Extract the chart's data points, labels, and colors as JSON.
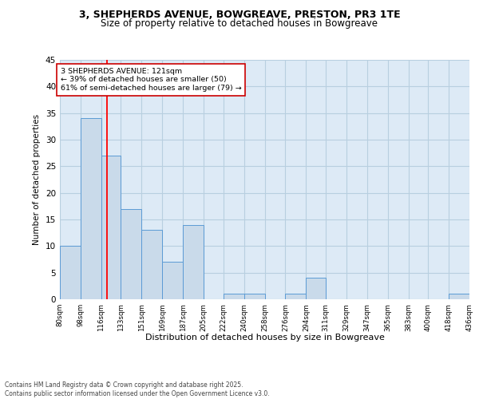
{
  "title1": "3, SHEPHERDS AVENUE, BOWGREAVE, PRESTON, PR3 1TE",
  "title2": "Size of property relative to detached houses in Bowgreave",
  "xlabel": "Distribution of detached houses by size in Bowgreave",
  "ylabel": "Number of detached properties",
  "bar_edges": [
    80,
    98,
    116,
    133,
    151,
    169,
    187,
    205,
    222,
    240,
    258,
    276,
    294,
    311,
    329,
    347,
    365,
    383,
    400,
    418,
    436
  ],
  "bar_heights": [
    10,
    34,
    27,
    17,
    13,
    7,
    14,
    0,
    1,
    1,
    0,
    1,
    4,
    0,
    0,
    0,
    0,
    0,
    0,
    1
  ],
  "bar_color": "#c9daea",
  "bar_edge_color": "#5b9bd5",
  "grid_color": "#b8cfe0",
  "bg_color": "#ddeaf6",
  "red_line_x": 121,
  "annotation_text": "3 SHEPHERDS AVENUE: 121sqm\n← 39% of detached houses are smaller (50)\n61% of semi-detached houses are larger (79) →",
  "annotation_box_color": "#ffffff",
  "annotation_box_edge": "#cc0000",
  "footnote": "Contains HM Land Registry data © Crown copyright and database right 2025.\nContains public sector information licensed under the Open Government Licence v3.0.",
  "ylim": [
    0,
    45
  ],
  "yticks": [
    0,
    5,
    10,
    15,
    20,
    25,
    30,
    35,
    40,
    45
  ],
  "tick_labels": [
    "80sqm",
    "98sqm",
    "116sqm",
    "133sqm",
    "151sqm",
    "169sqm",
    "187sqm",
    "205sqm",
    "222sqm",
    "240sqm",
    "258sqm",
    "276sqm",
    "294sqm",
    "311sqm",
    "329sqm",
    "347sqm",
    "365sqm",
    "383sqm",
    "400sqm",
    "418sqm",
    "436sqm"
  ]
}
